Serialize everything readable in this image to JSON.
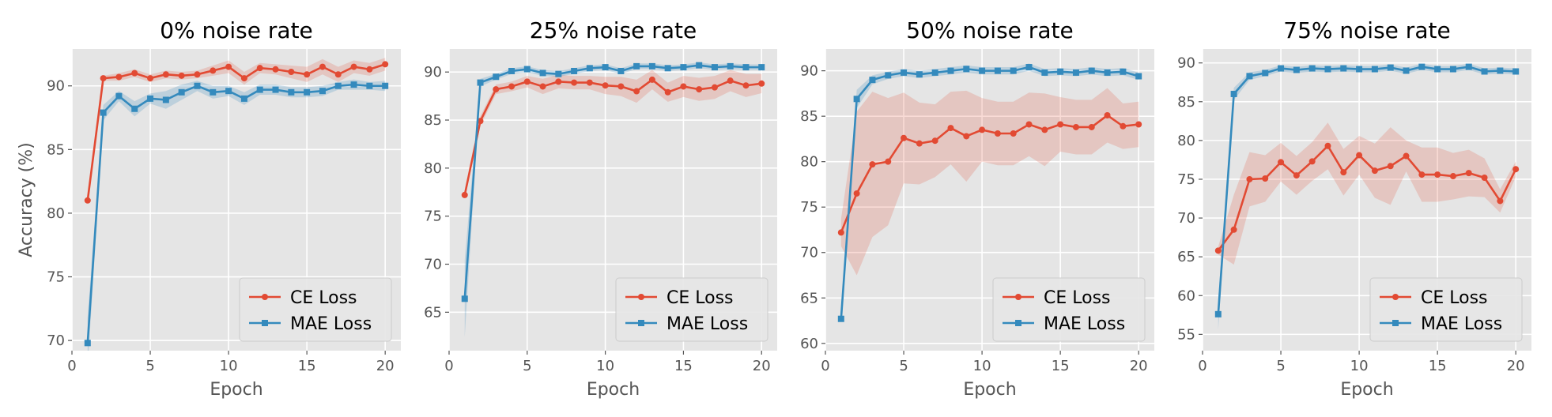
{
  "colors": {
    "ce": "#E24A33",
    "mae": "#348ABD",
    "ce_band": "#E24A33",
    "mae_band": "#348ABD",
    "axes_bg": "#E5E5E5",
    "grid": "#FFFFFF",
    "tick_text": "#555555"
  },
  "chart_data": [
    {
      "type": "line",
      "title": "0% noise rate",
      "xlabel": "Epoch",
      "ylabel": "Accuracy (%)",
      "xlim": [
        0,
        21
      ],
      "ylim": [
        69.2,
        92.9
      ],
      "xticks": [
        0,
        5,
        10,
        15,
        20
      ],
      "yticks": [
        70,
        75,
        80,
        85,
        90
      ],
      "legend": "lower-right",
      "x": [
        1,
        2,
        3,
        4,
        5,
        6,
        7,
        8,
        9,
        10,
        11,
        12,
        13,
        14,
        15,
        16,
        17,
        18,
        19,
        20
      ],
      "series": [
        {
          "name": "CE Loss",
          "marker": "circle",
          "values": [
            81.0,
            90.6,
            90.7,
            91.0,
            90.6,
            90.9,
            90.8,
            90.9,
            91.2,
            91.5,
            90.6,
            91.4,
            91.3,
            91.1,
            90.9,
            91.5,
            90.9,
            91.5,
            91.3,
            91.7
          ],
          "band": [
            0.1,
            0.2,
            0.3,
            0.3,
            0.3,
            0.3,
            0.3,
            0.3,
            0.4,
            0.5,
            0.5,
            0.4,
            0.4,
            0.5,
            0.6,
            0.6,
            0.6,
            0.5,
            0.5,
            0.5
          ]
        },
        {
          "name": "MAE Loss",
          "marker": "square",
          "values": [
            69.8,
            87.9,
            89.2,
            88.2,
            89.0,
            88.9,
            89.5,
            90.0,
            89.5,
            89.6,
            89.0,
            89.7,
            89.7,
            89.5,
            89.5,
            89.6,
            90.0,
            90.1,
            90.0,
            90.0
          ],
          "band": [
            2.0,
            0.6,
            0.4,
            0.6,
            0.4,
            0.7,
            0.6,
            0.4,
            0.5,
            0.4,
            0.5,
            0.4,
            0.4,
            0.4,
            0.4,
            0.4,
            0.3,
            0.4,
            0.3,
            0.4
          ]
        }
      ]
    },
    {
      "type": "line",
      "title": "25% noise rate",
      "xlabel": "Epoch",
      "ylabel": "",
      "xlim": [
        0,
        21
      ],
      "ylim": [
        61,
        92.4
      ],
      "xticks": [
        0,
        5,
        10,
        15,
        20
      ],
      "yticks": [
        65,
        70,
        75,
        80,
        85,
        90
      ],
      "legend": "lower-right",
      "x": [
        1,
        2,
        3,
        4,
        5,
        6,
        7,
        8,
        9,
        10,
        11,
        12,
        13,
        14,
        15,
        16,
        17,
        18,
        19,
        20
      ],
      "series": [
        {
          "name": "CE Loss",
          "marker": "circle",
          "values": [
            77.2,
            84.9,
            88.2,
            88.5,
            89.0,
            88.5,
            89.0,
            88.9,
            88.9,
            88.6,
            88.5,
            88.0,
            89.2,
            87.9,
            88.5,
            88.2,
            88.4,
            89.1,
            88.6,
            88.8
          ],
          "band": [
            0.2,
            0.5,
            0.5,
            0.5,
            0.6,
            0.8,
            0.7,
            0.7,
            0.7,
            0.9,
            1.0,
            1.2,
            1.0,
            1.0,
            1.1,
            1.2,
            1.2,
            1.1,
            1.2,
            1.0
          ]
        },
        {
          "name": "MAE Loss",
          "marker": "square",
          "values": [
            66.4,
            88.9,
            89.5,
            90.1,
            90.3,
            89.9,
            89.8,
            90.1,
            90.4,
            90.5,
            90.1,
            90.6,
            90.6,
            90.4,
            90.5,
            90.7,
            90.5,
            90.6,
            90.5,
            90.5
          ],
          "band": [
            4.0,
            0.4,
            0.3,
            0.3,
            0.3,
            0.3,
            0.3,
            0.3,
            0.3,
            0.3,
            0.3,
            0.3,
            0.3,
            0.3,
            0.3,
            0.3,
            0.3,
            0.3,
            0.3,
            0.3
          ]
        }
      ]
    },
    {
      "type": "line",
      "title": "50% noise rate",
      "xlabel": "Epoch",
      "ylabel": "",
      "xlim": [
        0,
        21
      ],
      "ylim": [
        59.2,
        92.4
      ],
      "xticks": [
        0,
        5,
        10,
        15,
        20
      ],
      "yticks": [
        60,
        65,
        70,
        75,
        80,
        85,
        90
      ],
      "legend": "lower-right",
      "x": [
        1,
        2,
        3,
        4,
        5,
        6,
        7,
        8,
        9,
        10,
        11,
        12,
        13,
        14,
        15,
        16,
        17,
        18,
        19,
        20
      ],
      "series": [
        {
          "name": "CE Loss",
          "marker": "circle",
          "values": [
            72.2,
            76.5,
            79.7,
            80.0,
            82.6,
            82.0,
            82.3,
            83.7,
            82.8,
            83.5,
            83.1,
            83.1,
            84.1,
            83.5,
            84.1,
            83.8,
            83.8,
            85.1,
            83.9,
            84.1
          ],
          "band": [
            1.5,
            9.0,
            8.0,
            7.0,
            5.0,
            4.5,
            4.0,
            4.0,
            5.0,
            3.5,
            3.5,
            3.5,
            3.5,
            4.0,
            3.0,
            3.0,
            3.0,
            3.0,
            2.5,
            2.5
          ]
        },
        {
          "name": "MAE Loss",
          "marker": "square",
          "values": [
            62.7,
            86.9,
            89.0,
            89.5,
            89.8,
            89.6,
            89.8,
            90.0,
            90.2,
            90.0,
            90.0,
            90.0,
            90.4,
            89.8,
            89.9,
            89.8,
            90.0,
            89.8,
            89.9,
            89.4
          ],
          "band": [
            0.3,
            1.0,
            0.5,
            0.4,
            0.4,
            0.4,
            0.4,
            0.4,
            0.4,
            0.4,
            0.4,
            0.4,
            0.4,
            0.4,
            0.4,
            0.4,
            0.4,
            0.4,
            0.4,
            0.4
          ]
        }
      ]
    },
    {
      "type": "line",
      "title": "75% noise rate",
      "xlabel": "Epoch",
      "ylabel": "",
      "xlim": [
        0,
        21
      ],
      "ylim": [
        52.9,
        91.8
      ],
      "xticks": [
        0,
        5,
        10,
        15,
        20
      ],
      "yticks": [
        55,
        60,
        65,
        70,
        75,
        80,
        85,
        90
      ],
      "legend": "lower-right",
      "x": [
        1,
        2,
        3,
        4,
        5,
        6,
        7,
        8,
        9,
        10,
        11,
        12,
        13,
        14,
        15,
        16,
        17,
        18,
        19,
        20
      ],
      "series": [
        {
          "name": "CE Loss",
          "marker": "circle",
          "values": [
            65.8,
            68.5,
            75.0,
            75.1,
            77.2,
            75.5,
            77.3,
            79.3,
            75.9,
            78.1,
            76.1,
            76.7,
            78.0,
            75.6,
            75.6,
            75.4,
            75.8,
            75.2,
            72.2,
            76.3
          ],
          "band": [
            0.5,
            4.5,
            3.5,
            3.0,
            2.5,
            2.5,
            2.5,
            3.0,
            3.0,
            2.5,
            3.5,
            5.0,
            2.0,
            3.5,
            3.5,
            3.0,
            3.0,
            2.5,
            1.5,
            1.0
          ]
        },
        {
          "name": "MAE Loss",
          "marker": "square",
          "values": [
            57.6,
            86.0,
            88.3,
            88.7,
            89.3,
            89.1,
            89.3,
            89.2,
            89.3,
            89.2,
            89.2,
            89.4,
            89.0,
            89.5,
            89.2,
            89.2,
            89.5,
            88.9,
            89.0,
            88.9
          ],
          "band": [
            2.0,
            0.8,
            0.5,
            0.4,
            0.4,
            0.4,
            0.4,
            0.4,
            0.4,
            0.4,
            0.4,
            0.4,
            0.4,
            0.4,
            0.4,
            0.4,
            0.4,
            0.4,
            0.4,
            0.4
          ]
        }
      ]
    }
  ]
}
